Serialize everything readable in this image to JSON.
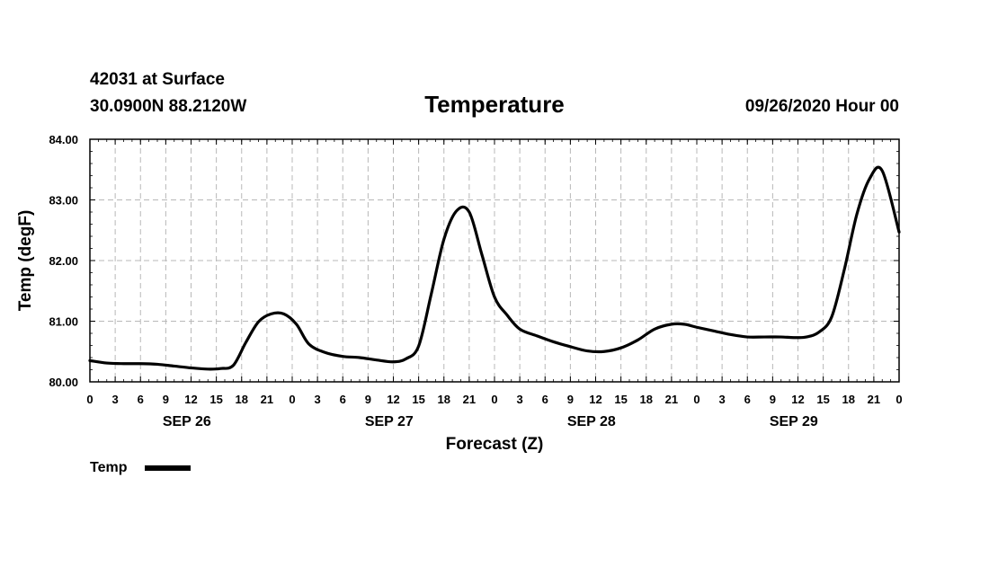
{
  "header": {
    "station": "42031 at Surface",
    "location": "30.0900N 88.2120W",
    "title": "Temperature",
    "run": "09/26/2020 Hour 00"
  },
  "chart_data": {
    "type": "line",
    "title": "Temperature",
    "xlabel": "Forecast (Z)",
    "ylabel": "Temp (degF)",
    "ylim": [
      80,
      84
    ],
    "y_ticks": [
      "80.00",
      "81.00",
      "82.00",
      "83.00",
      "84.00"
    ],
    "x_range_hours": [
      0,
      96
    ],
    "x_tick_labels": [
      "0",
      "3",
      "6",
      "9",
      "12",
      "15",
      "18",
      "21",
      "0",
      "3",
      "6",
      "9",
      "12",
      "15",
      "18",
      "21",
      "0",
      "3",
      "6",
      "9",
      "12",
      "15",
      "18",
      "21",
      "0",
      "3",
      "6",
      "9",
      "12",
      "15",
      "18",
      "21",
      "0"
    ],
    "day_labels": [
      "SEP 26",
      "SEP 27",
      "SEP 28",
      "SEP 29"
    ],
    "grid": true,
    "legend": "bottom-left",
    "series": [
      {
        "name": "Temp",
        "color": "#000000",
        "x": [
          0,
          2,
          4,
          6,
          8,
          10,
          12,
          14,
          15.5,
          17,
          18.5,
          20,
          21.5,
          23,
          24.5,
          26,
          28,
          30,
          32,
          34,
          36,
          37.5,
          39,
          40.5,
          42,
          43.5,
          45,
          46.5,
          48,
          49.5,
          51,
          53,
          55,
          57,
          59,
          61,
          63,
          65,
          67,
          69,
          70.5,
          72,
          74,
          76,
          78,
          80,
          82,
          83.5,
          85,
          86.5,
          88,
          89.5,
          91,
          92.5,
          94,
          96
        ],
        "y": [
          80.35,
          80.31,
          80.3,
          80.3,
          80.29,
          80.26,
          80.23,
          80.21,
          80.22,
          80.27,
          80.65,
          80.99,
          81.12,
          81.12,
          80.95,
          80.62,
          80.48,
          80.42,
          80.4,
          80.36,
          80.33,
          80.38,
          80.59,
          81.45,
          82.35,
          82.82,
          82.8,
          82.1,
          81.4,
          81.1,
          80.87,
          80.76,
          80.66,
          80.58,
          80.51,
          80.5,
          80.56,
          80.69,
          80.87,
          80.95,
          80.95,
          80.9,
          80.84,
          80.78,
          80.74,
          80.74,
          80.74,
          80.73,
          80.74,
          80.82,
          81.07,
          81.85,
          82.77,
          83.35,
          83.48,
          82.47
        ]
      }
    ]
  }
}
